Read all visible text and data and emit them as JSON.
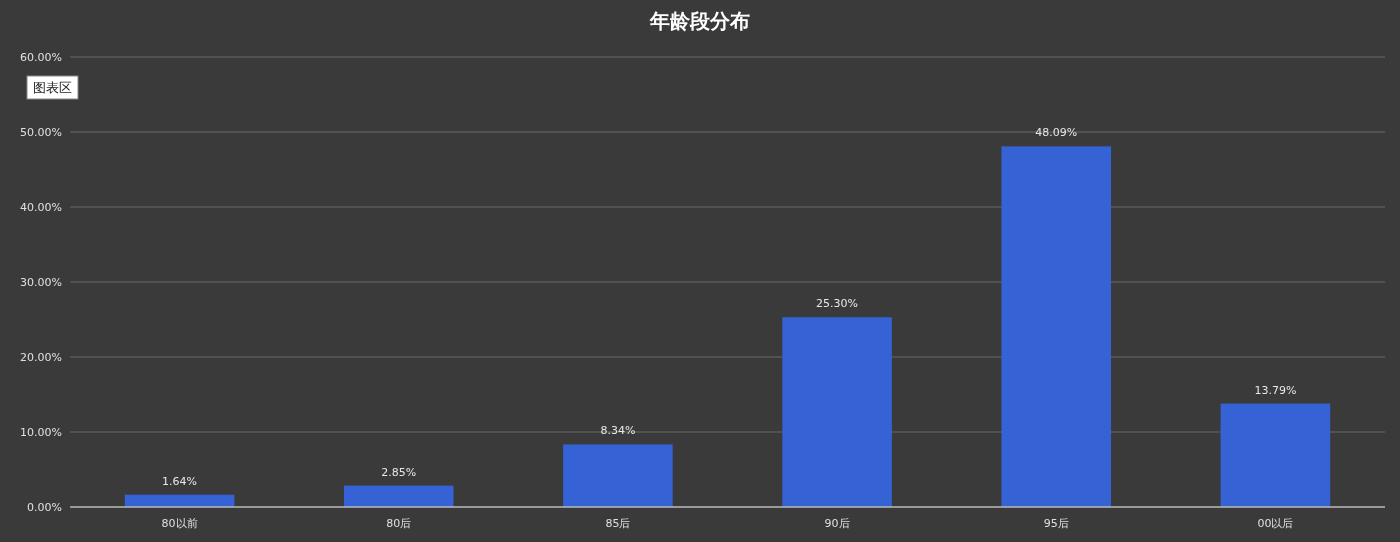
{
  "chart_data": {
    "type": "bar",
    "title": "年龄段分布",
    "categories": [
      "80以前",
      "80后",
      "85后",
      "90后",
      "95后",
      "00以后"
    ],
    "values": [
      1.64,
      2.85,
      8.34,
      25.3,
      48.09,
      13.79
    ],
    "value_labels": [
      "1.64%",
      "2.85%",
      "8.34%",
      "25.30%",
      "48.09%",
      "13.79%"
    ],
    "color": "#3562d4",
    "ylim": [
      0,
      60
    ],
    "yticks": [
      {
        "value": 0,
        "label": "0.00%"
      },
      {
        "value": 10,
        "label": "10.00%"
      },
      {
        "value": 20,
        "label": "20.00%"
      },
      {
        "value": 30,
        "label": "30.00%"
      },
      {
        "value": 40,
        "label": "40.00%"
      },
      {
        "value": 50,
        "label": "50.00%"
      },
      {
        "value": 60,
        "label": "60.00%"
      }
    ],
    "grid": "y",
    "annotations": [
      "图表区"
    ]
  }
}
